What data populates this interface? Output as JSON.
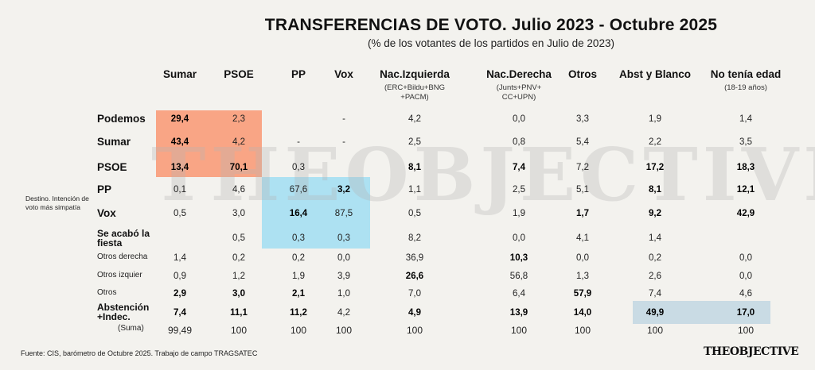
{
  "title": "TRANSFERENCIAS DE  VOTO. Julio 2023 - Octubre 2025",
  "subtitle": "(% de los votantes de los partidos en Julio de 2023)",
  "side_label": "Destino. Intención de voto más simpatía",
  "source": "Fuente: CIS, barómetro de Octubre 2025. Trabajo de campo TRAGSATEC",
  "logo": "THEOBJECTIVE",
  "watermark": "THEOBJECTIVE",
  "colors": {
    "highlight_orange": "#f9a585",
    "highlight_blue": "#ade1f2",
    "highlight_grey": "#c9dbe4",
    "background": "#f3f2ee"
  },
  "chart_data": {
    "type": "table",
    "title": "TRANSFERENCIAS DE  VOTO. Julio 2023 - Octubre 2025",
    "subtitle": "(% de los votantes de los partidos en Julio de 2023)",
    "columns": [
      {
        "label": "Sumar",
        "sub": ""
      },
      {
        "label": "PSOE",
        "sub": ""
      },
      {
        "label": "PP",
        "sub": ""
      },
      {
        "label": "Vox",
        "sub": ""
      },
      {
        "label": "Nac.Izquierda",
        "sub": "(ERC+Bildu+BNG\n+PACM)"
      },
      {
        "label": "Nac.Derecha",
        "sub": "(Junts+PNV+\nCC+UPN)"
      },
      {
        "label": "Otros",
        "sub": ""
      },
      {
        "label": "Abst y Blanco",
        "sub": ""
      },
      {
        "label": "No tenía edad",
        "sub": "(18-19 años)"
      }
    ],
    "rows": [
      {
        "label": "Podemos",
        "style": "big",
        "values": [
          "29,4",
          "2,3",
          "",
          "-",
          "4,2",
          "0,0",
          "3,3",
          "1,9",
          "1,4"
        ],
        "bold": [
          0
        ]
      },
      {
        "label": "Sumar",
        "style": "big",
        "values": [
          "43,4",
          "4,2",
          "-",
          "-",
          "2,5",
          "0,8",
          "5,4",
          "2,2",
          "3,5"
        ],
        "bold": [
          0
        ]
      },
      {
        "label": "PSOE",
        "style": "big",
        "values": [
          "13,4",
          "70,1",
          "0,3",
          "",
          "8,1",
          "7,4",
          "7,2",
          "17,2",
          "18,3"
        ],
        "bold": [
          0,
          1,
          4,
          5,
          7,
          8
        ]
      },
      {
        "label": "PP",
        "style": "big",
        "values": [
          "0,1",
          "4,6",
          "67,6",
          "3,2",
          "1,1",
          "2,5",
          "5,1",
          "8,1",
          "12,1"
        ],
        "bold": [
          3,
          7,
          8
        ]
      },
      {
        "label": "Vox",
        "style": "big",
        "values": [
          "0,5",
          "3,0",
          "16,4",
          "87,5",
          "0,5",
          "1,9",
          "1,7",
          "9,2",
          "42,9"
        ],
        "bold": [
          2,
          6,
          7,
          8
        ]
      },
      {
        "label": "Se acabó la\nfiesta",
        "style": "med",
        "values": [
          "",
          "0,5",
          "0,3",
          "0,3",
          "8,2",
          "0,0",
          "4,1",
          "1,4",
          ""
        ],
        "bold": []
      },
      {
        "label": "Otros derecha",
        "style": "small",
        "values": [
          "1,4",
          "0,2",
          "0,2",
          "0,0",
          "36,9",
          "10,3",
          "0,0",
          "0,2",
          "0,0"
        ],
        "bold": [
          5
        ]
      },
      {
        "label": "Otros izquier",
        "style": "small",
        "values": [
          "0,9",
          "1,2",
          "1,9",
          "3,9",
          "26,6",
          "56,8",
          "1,3",
          "2,6",
          "0,0"
        ],
        "bold": [
          4
        ]
      },
      {
        "label": "Otros",
        "style": "small",
        "values": [
          "2,9",
          "3,0",
          "2,1",
          "1,0",
          "7,0",
          "6,4",
          "57,9",
          "7,4",
          "4,6"
        ],
        "bold": [
          0,
          1,
          2,
          6
        ]
      },
      {
        "label": "Abstención\n+Indec.",
        "style": "med",
        "values": [
          "7,4",
          "11,1",
          "11,2",
          "4,2",
          "4,9",
          "13,9",
          "14,0",
          "49,9",
          "17,0"
        ],
        "bold": [
          0,
          1,
          2,
          4,
          5,
          6,
          7,
          8
        ]
      },
      {
        "label": "(Suma)",
        "style": "suma",
        "values": [
          "99,49",
          "100",
          "100",
          "100",
          "100",
          "100",
          "100",
          "100",
          "100"
        ],
        "bold": []
      }
    ]
  }
}
